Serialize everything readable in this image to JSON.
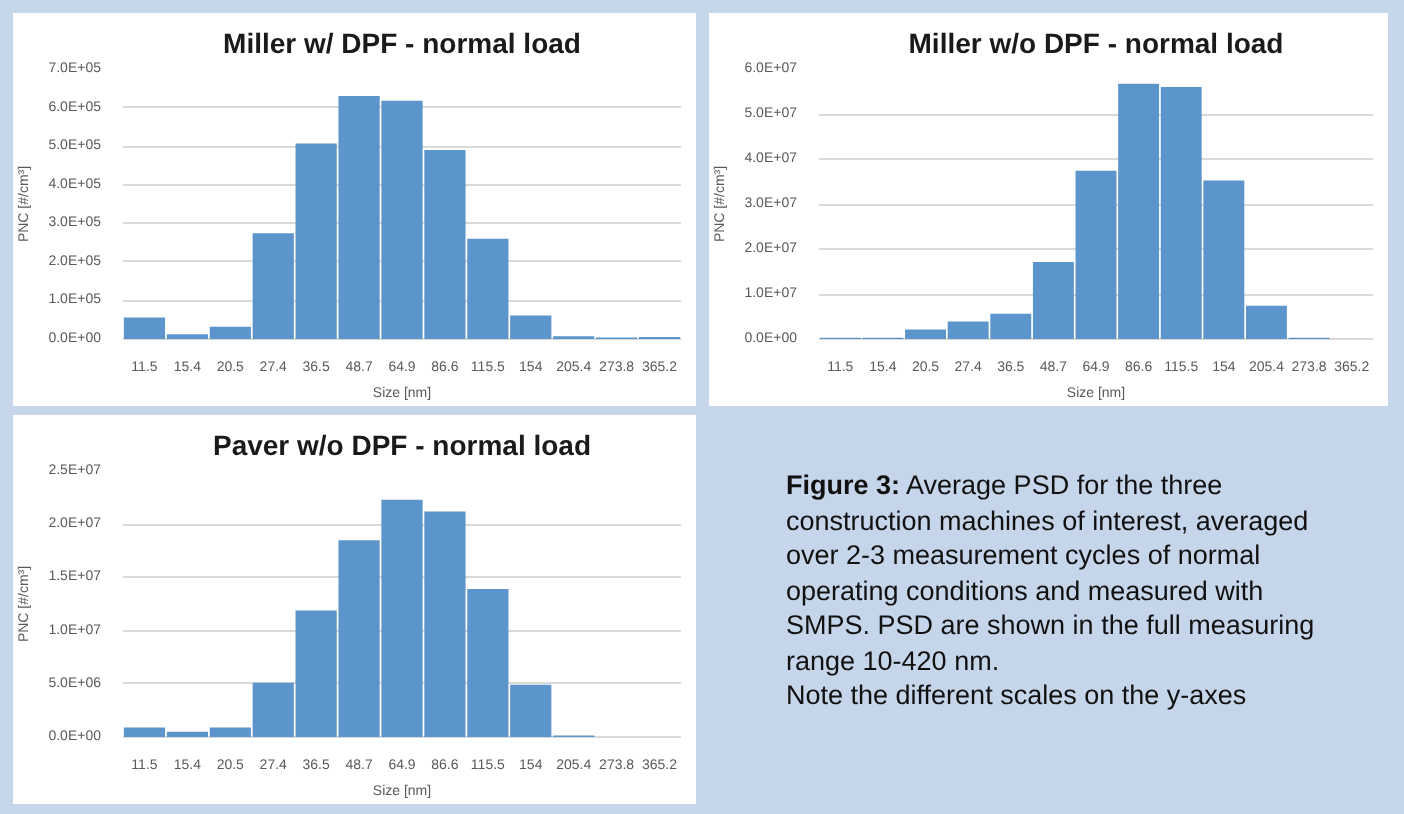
{
  "chart_data": [
    {
      "type": "bar",
      "title": "Miller w/ DPF - normal load",
      "xlabel": "Size [nm]",
      "ylabel": "PNC [#/cm³]",
      "categories": [
        "11.5",
        "15.4",
        "20.5",
        "27.4",
        "36.5",
        "48.7",
        "64.9",
        "86.6",
        "115.5",
        "154",
        "205.4",
        "273.8",
        "365.2"
      ],
      "values": [
        56000,
        12000,
        32000,
        274000,
        507000,
        630000,
        618000,
        490000,
        260000,
        61000,
        7000,
        4000,
        5000
      ],
      "color": "#5b95cb",
      "ylim": [
        0,
        700000
      ],
      "yticks": [
        {
          "value": 0,
          "label": "0.0E+00"
        },
        {
          "value": 100000,
          "label": "1.0E+05"
        },
        {
          "value": 200000,
          "label": "2.0E+05"
        },
        {
          "value": 300000,
          "label": "3.0E+05"
        },
        {
          "value": 400000,
          "label": "4.0E+05"
        },
        {
          "value": 500000,
          "label": "5.0E+05"
        },
        {
          "value": 600000,
          "label": "6.0E+05"
        },
        {
          "value": 700000,
          "label": "7.0E+05"
        }
      ],
      "grid": "y"
    },
    {
      "type": "bar",
      "title": "Miller w/o DPF - normal load",
      "xlabel": "Size [nm]",
      "ylabel": "PNC [#/cm³]",
      "categories": [
        "11.5",
        "15.4",
        "20.5",
        "27.4",
        "36.5",
        "48.7",
        "64.9",
        "86.6",
        "115.5",
        "154",
        "205.4",
        "273.8",
        "365.2"
      ],
      "values": [
        300000,
        300000,
        2100000,
        3900000,
        5600000,
        17100000,
        37400000,
        56700000,
        56000000,
        35200000,
        7400000,
        300000,
        0
      ],
      "color": "#5b95cb",
      "ylim": [
        0,
        60000000
      ],
      "yticks": [
        {
          "value": 0,
          "label": "0.0E+00"
        },
        {
          "value": 10000000,
          "label": "1.0E+07"
        },
        {
          "value": 20000000,
          "label": "2.0E+07"
        },
        {
          "value": 30000000,
          "label": "3.0E+07"
        },
        {
          "value": 40000000,
          "label": "4.0E+07"
        },
        {
          "value": 50000000,
          "label": "5.0E+07"
        },
        {
          "value": 60000000,
          "label": "6.0E+07"
        }
      ],
      "grid": "y"
    },
    {
      "type": "bar",
      "title": "Paver w/o DPF - normal load",
      "xlabel": "Size [nm]",
      "ylabel": "PNC [#/cm³]",
      "categories": [
        "11.5",
        "15.4",
        "20.5",
        "27.4",
        "36.5",
        "48.7",
        "64.9",
        "86.6",
        "115.5",
        "154",
        "205.4",
        "273.8",
        "365.2"
      ],
      "values": [
        900000,
        500000,
        900000,
        5100000,
        11900000,
        18500000,
        22300000,
        21200000,
        13900000,
        4900000,
        130000,
        0,
        0
      ],
      "color": "#5b95cb",
      "ylim": [
        0,
        25000000
      ],
      "yticks": [
        {
          "value": 0,
          "label": "0.0E+00"
        },
        {
          "value": 5000000,
          "label": "5.0E+06"
        },
        {
          "value": 10000000,
          "label": "1.0E+07"
        },
        {
          "value": 15000000,
          "label": "1.5E+07"
        },
        {
          "value": 20000000,
          "label": "2.0E+07"
        },
        {
          "value": 25000000,
          "label": "2.5E+07"
        }
      ],
      "grid": "y"
    },
    {
      "type": "other",
      "title": "Figure 3:",
      "annotations": [
        "Average PSD for the three construction machines of interest, averaged over 2-3 measurement cycles of normal operating conditions and measured with SMPS. PSD are shown in the full measuring range 10-420 nm.",
        "Note the different scales on the y-axes"
      ]
    }
  ]
}
